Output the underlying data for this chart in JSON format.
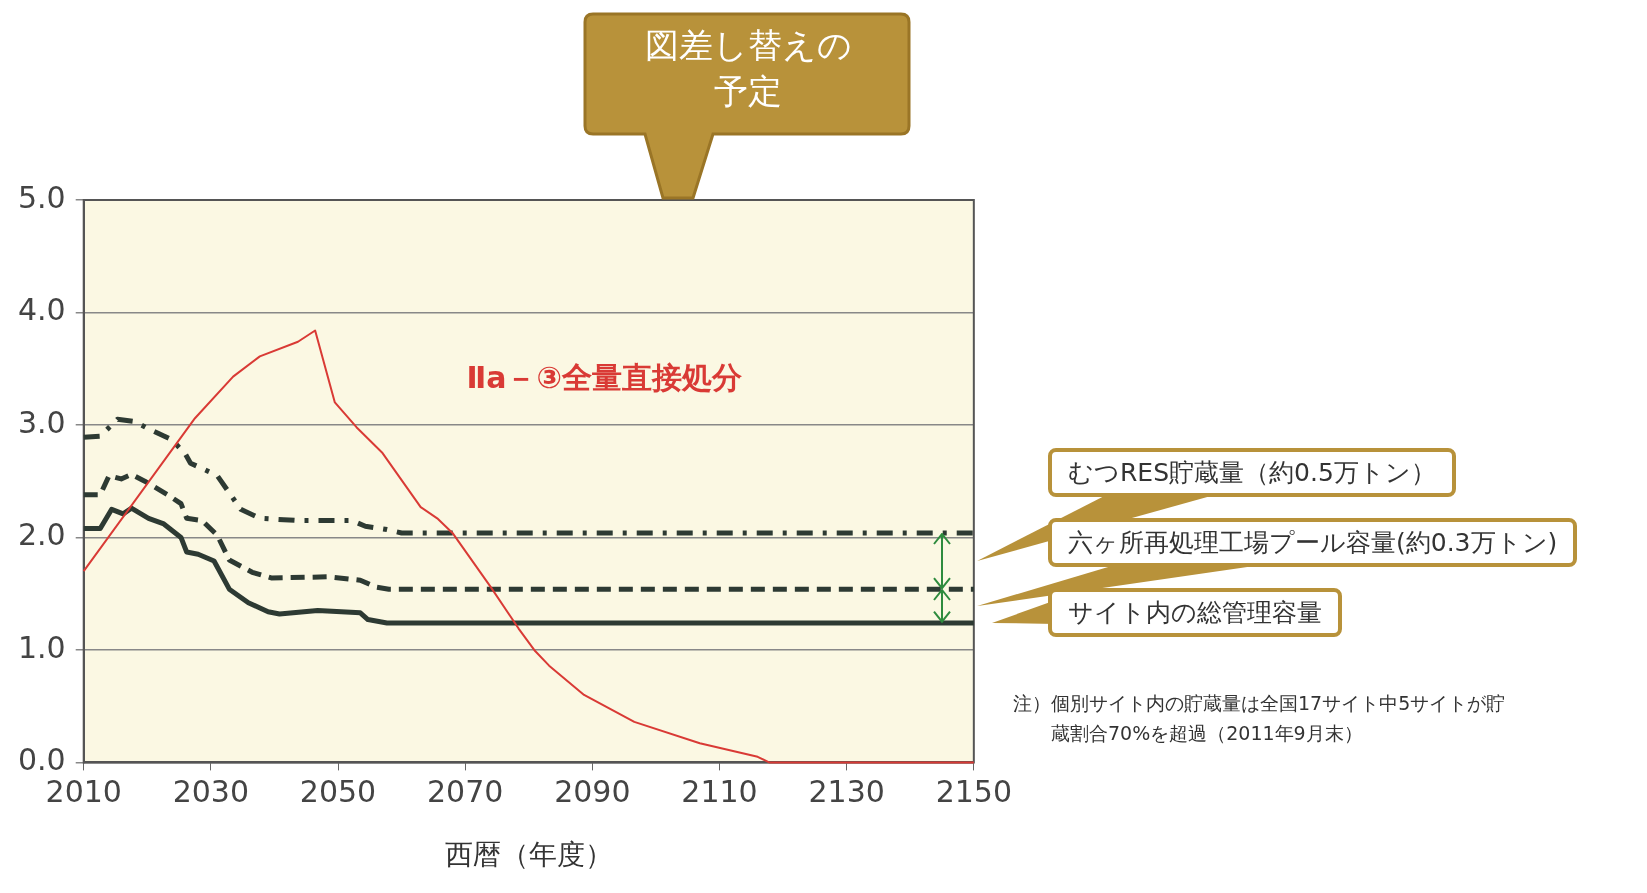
{
  "chart_data": {
    "type": "line",
    "xlabel": "西暦（年度）",
    "xlim": [
      2010,
      2150
    ],
    "xticks": [
      2010,
      2030,
      2050,
      2070,
      2090,
      2110,
      2130,
      2150
    ],
    "ylim": [
      0,
      5
    ],
    "yticks": [
      {
        "value": 0,
        "label": "0.0"
      },
      {
        "value": 1,
        "label": "1.0"
      },
      {
        "value": 2,
        "label": "2.0"
      },
      {
        "value": 3,
        "label": "3.0"
      },
      {
        "value": 4,
        "label": "4.0"
      },
      {
        "value": 5,
        "label": "5.0"
      }
    ],
    "grid": "y",
    "legend": false,
    "marker": "none",
    "series": [
      {
        "name": "Ⅱa－③全量直接処分",
        "color": "#d93a35",
        "line_style": "solid",
        "x": [
          2010,
          2027.5,
          2033.5,
          2037.7,
          2043.7,
          2046.4,
          2049.5,
          2052.9,
          2057,
          2063,
          2065.6,
          2068,
          2074,
          2078.4,
          2081,
          2083.2,
          2088.7,
          2096.6,
          2106.9,
          2116,
          2117.8,
          2150
        ],
        "values": [
          1.7,
          3.06,
          3.43,
          3.61,
          3.74,
          3.84,
          3.2,
          2.98,
          2.75,
          2.27,
          2.17,
          2.04,
          1.56,
          1.19,
          0.99,
          0.86,
          0.6,
          0.36,
          0.17,
          0.05,
          0,
          0
        ]
      },
      {
        "color": "#2d3a33",
        "line_style": "dashdot",
        "x": [
          2010,
          2012.6,
          2015.3,
          2018,
          2020.4,
          2023.8,
          2025.9,
          2026.8,
          2031,
          2034.7,
          2037.7,
          2043.7,
          2052.2,
          2054.3,
          2057.7,
          2060,
          2150
        ],
        "values": [
          2.89,
          2.9,
          3.05,
          3.03,
          2.96,
          2.87,
          2.75,
          2.66,
          2.55,
          2.25,
          2.17,
          2.15,
          2.15,
          2.1,
          2.07,
          2.04,
          2.04
        ]
      },
      {
        "color": "#2d3a33",
        "line_style": "dashed",
        "x": [
          2010,
          2012.6,
          2014,
          2015.9,
          2017.5,
          2019.6,
          2023.2,
          2025.3,
          2026.2,
          2028.6,
          2031,
          2032.9,
          2036.5,
          2039.5,
          2048.6,
          2053.5,
          2055.9,
          2058,
          2150
        ],
        "values": [
          2.38,
          2.38,
          2.55,
          2.52,
          2.56,
          2.5,
          2.38,
          2.3,
          2.17,
          2.15,
          2.02,
          1.8,
          1.69,
          1.64,
          1.65,
          1.62,
          1.56,
          1.54,
          1.54
        ]
      },
      {
        "color": "#2d3a33",
        "line_style": "solid",
        "x": [
          2010,
          2012.6,
          2014.4,
          2016.2,
          2017.5,
          2020.2,
          2022.6,
          2025.3,
          2026.2,
          2028,
          2030.5,
          2032.9,
          2035.9,
          2039,
          2040.8,
          2046.8,
          2053.5,
          2054.7,
          2057.7,
          2150
        ],
        "values": [
          2.08,
          2.08,
          2.25,
          2.21,
          2.26,
          2.17,
          2.12,
          2,
          1.87,
          1.85,
          1.79,
          1.54,
          1.42,
          1.34,
          1.32,
          1.35,
          1.33,
          1.27,
          1.24,
          1.24
        ]
      }
    ],
    "annotations": [
      "図差し替えの予定",
      "むつRES貯蔵量（約0.5万トン）",
      "六ヶ所再処理工場プール容量(約0.3万トン)",
      "サイト内の総管理容量",
      "注）個別サイト内の貯蔵量は全国17サイト中5サイトが貯蔵割合70%を超過（2011年9月末）"
    ]
  }
}
